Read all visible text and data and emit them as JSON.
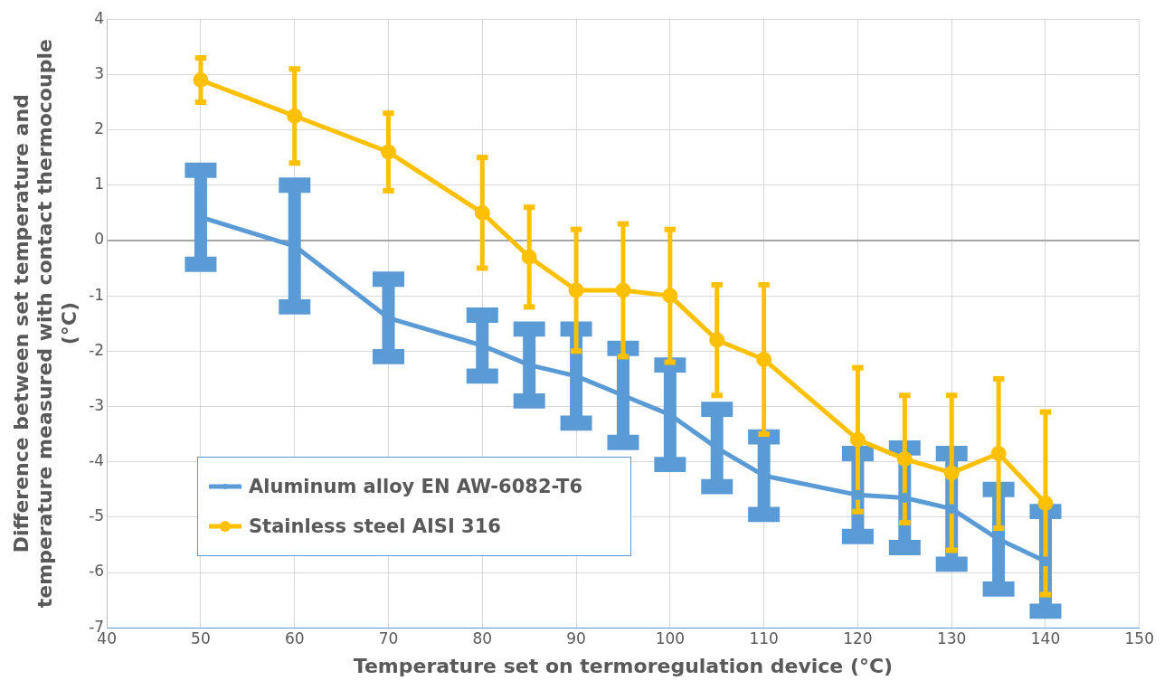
{
  "chart_data": {
    "type": "line",
    "xlabel": "Temperature set on termoregulation device (°C)",
    "ylabel": "Difference between set temperature and temperature measured with contact thermocouple (°C)",
    "x": [
      50,
      60,
      70,
      80,
      85,
      90,
      95,
      100,
      105,
      110,
      120,
      125,
      130,
      135,
      140
    ],
    "series": [
      {
        "name": "Aluminum alloy EN AW-6082-T6",
        "color": "#5b9bd5",
        "values": [
          0.42,
          -0.1,
          -1.4,
          -1.9,
          -2.25,
          -2.45,
          -2.8,
          -3.15,
          -3.75,
          -4.25,
          -4.6,
          -4.65,
          -4.85,
          -5.4,
          -5.8
        ],
        "errors": [
          0.85,
          1.1,
          0.7,
          0.55,
          0.65,
          0.85,
          0.85,
          0.9,
          0.7,
          0.7,
          0.75,
          0.9,
          1.0,
          0.9,
          0.9
        ]
      },
      {
        "name": "Stainless steel AISI 316",
        "color": "#ffc000",
        "values": [
          2.9,
          2.25,
          1.6,
          0.5,
          -0.3,
          -0.9,
          -0.9,
          -1.0,
          -1.8,
          -2.15,
          -3.6,
          -3.95,
          -4.2,
          -3.85,
          -4.75
        ],
        "errors": [
          0.4,
          0.85,
          0.7,
          1.0,
          0.9,
          1.1,
          1.2,
          1.2,
          1.0,
          1.35,
          1.3,
          1.15,
          1.4,
          1.35,
          1.65
        ]
      }
    ],
    "xlim": [
      40,
      150
    ],
    "xticks": [
      40,
      50,
      60,
      70,
      80,
      90,
      100,
      110,
      120,
      130,
      140,
      150
    ],
    "ylim": [
      -7,
      4
    ],
    "yticks": [
      -7,
      -6,
      -5,
      -4,
      -3,
      -2,
      -1,
      0,
      1,
      2,
      3,
      4
    ],
    "grid": true,
    "legend": "bottom left",
    "marker": "circle",
    "line_style": "solid"
  }
}
